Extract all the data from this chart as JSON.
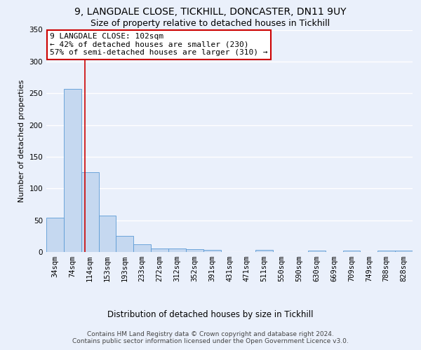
{
  "title1": "9, LANGDALE CLOSE, TICKHILL, DONCASTER, DN11 9UY",
  "title2": "Size of property relative to detached houses in Tickhill",
  "xlabel": "Distribution of detached houses by size in Tickhill",
  "ylabel": "Number of detached properties",
  "bar_labels": [
    "34sqm",
    "74sqm",
    "114sqm",
    "153sqm",
    "193sqm",
    "233sqm",
    "272sqm",
    "312sqm",
    "352sqm",
    "391sqm",
    "431sqm",
    "471sqm",
    "511sqm",
    "550sqm",
    "590sqm",
    "630sqm",
    "669sqm",
    "709sqm",
    "749sqm",
    "788sqm",
    "828sqm"
  ],
  "bar_heights": [
    54,
    257,
    126,
    57,
    25,
    12,
    5,
    5,
    4,
    3,
    0,
    0,
    3,
    0,
    0,
    2,
    0,
    2,
    0,
    2,
    2
  ],
  "bar_color": "#c5d8f0",
  "bar_edge_color": "#5b9bd5",
  "bg_color": "#eaf0fb",
  "grid_color": "#ffffff",
  "vline_x": 1.7,
  "vline_color": "#cc0000",
  "annotation_text": "9 LANGDALE CLOSE: 102sqm\n← 42% of detached houses are smaller (230)\n57% of semi-detached houses are larger (310) →",
  "annotation_box_color": "#ffffff",
  "annotation_box_edge": "#cc0000",
  "ylim": [
    0,
    350
  ],
  "yticks": [
    0,
    50,
    100,
    150,
    200,
    250,
    300,
    350
  ],
  "footer": "Contains HM Land Registry data © Crown copyright and database right 2024.\nContains public sector information licensed under the Open Government Licence v3.0.",
  "title1_fontsize": 10,
  "title2_fontsize": 9,
  "xlabel_fontsize": 8.5,
  "ylabel_fontsize": 8,
  "tick_fontsize": 7.5,
  "annotation_fontsize": 8,
  "footer_fontsize": 6.5
}
